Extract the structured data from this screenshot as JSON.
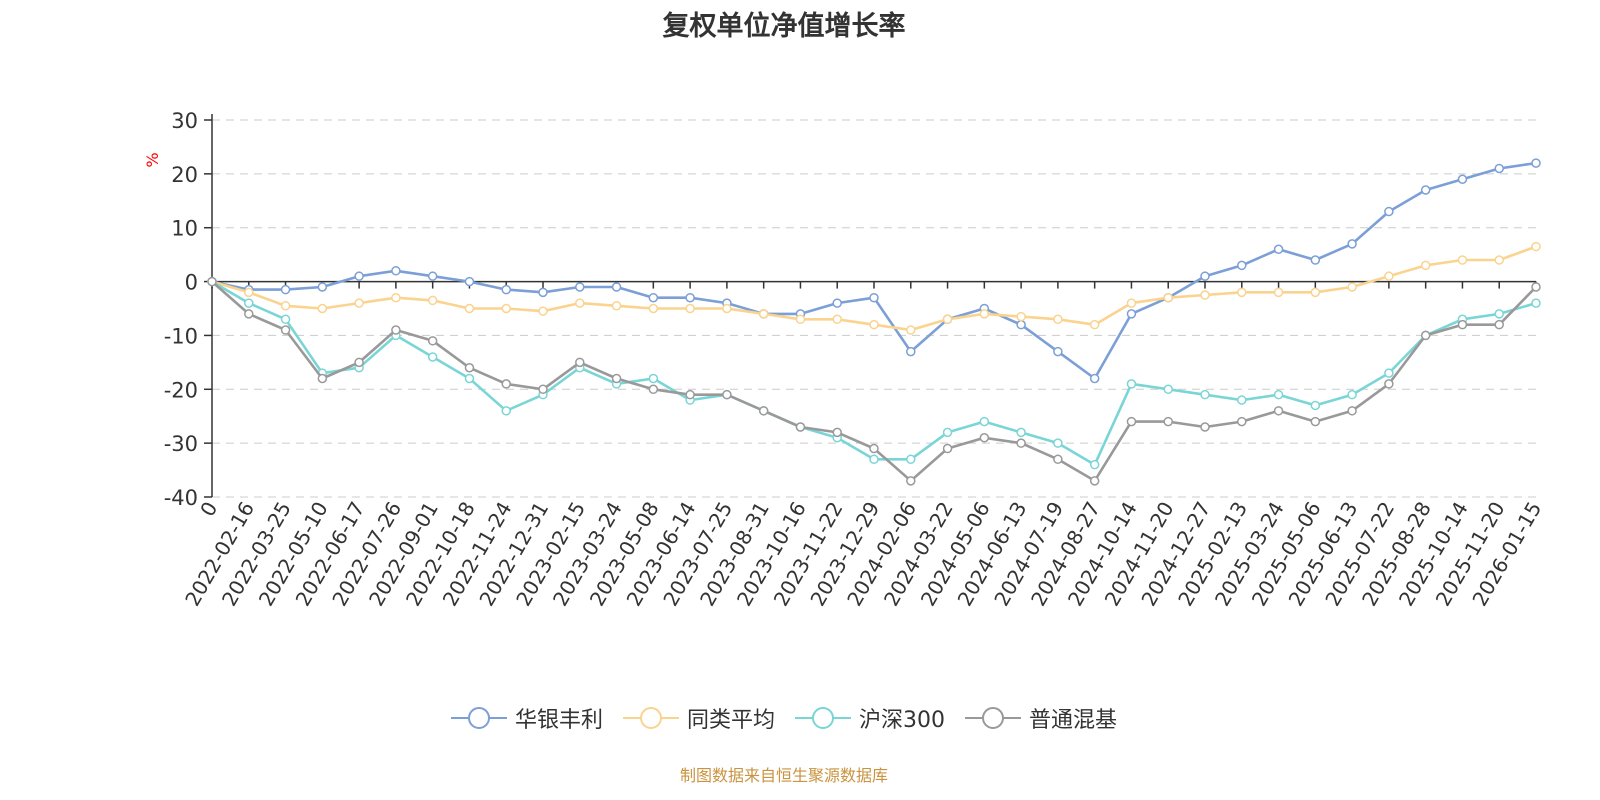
{
  "chart_data": {
    "type": "line",
    "title": "复权单位净值增长率",
    "ylabel": "%",
    "xlabel": "",
    "ylim": [
      -40,
      30
    ],
    "yticks": [
      -40,
      -30,
      -20,
      -10,
      0,
      10,
      20,
      30
    ],
    "grid": true,
    "legend_position": "bottom",
    "categories": [
      "0",
      "2022-02-16",
      "2022-03-25",
      "2022-05-10",
      "2022-06-17",
      "2022-07-26",
      "2022-09-01",
      "2022-10-18",
      "2022-11-24",
      "2022-12-31",
      "2023-02-15",
      "2023-03-24",
      "2023-05-08",
      "2023-06-14",
      "2023-07-25",
      "2023-08-31",
      "2023-10-16",
      "2023-11-22",
      "2023-12-29",
      "2024-02-06",
      "2024-03-22",
      "2024-05-06",
      "2024-06-13",
      "2024-07-19",
      "2024-08-27",
      "2024-10-14",
      "2024-11-20",
      "2024-12-27",
      "2025-02-13",
      "2025-03-24",
      "2025-05-06",
      "2025-06-13",
      "2025-07-22",
      "2025-08-28",
      "2025-10-14",
      "2025-11-20",
      "2026-01-15"
    ],
    "series": [
      {
        "name": "华银丰利",
        "color": "#7b9fd6",
        "values": [
          0,
          -1.5,
          -1.5,
          -1,
          1,
          2,
          1,
          0,
          -1.5,
          -2,
          -1,
          -1,
          -3,
          -3,
          -4,
          -6,
          -6,
          -4,
          -3,
          -13,
          -7,
          -5,
          -8,
          -13,
          -18,
          -6,
          -3,
          1,
          3,
          6,
          4,
          7,
          13,
          17,
          19,
          21,
          22
        ]
      },
      {
        "name": "同类平均",
        "color": "#fad38e",
        "values": [
          0,
          -2,
          -4.5,
          -5,
          -4,
          -3,
          -3.5,
          -5,
          -5,
          -5.5,
          -4,
          -4.5,
          -5,
          -5,
          -5,
          -6,
          -7,
          -7,
          -8,
          -9,
          -7,
          -6,
          -6.5,
          -7,
          -8,
          -4,
          -3,
          -2.5,
          -2,
          -2,
          -2,
          -1,
          1,
          3,
          4,
          4,
          6.5
        ]
      },
      {
        "name": "沪深300",
        "color": "#7ad5d6",
        "values": [
          0,
          -4,
          -7,
          -17,
          -16,
          -10,
          -14,
          -18,
          -24,
          -21,
          -16,
          -19,
          -18,
          -22,
          -21,
          -24,
          -27,
          -29,
          -33,
          -33,
          -28,
          -26,
          -28,
          -30,
          -34,
          -19,
          -20,
          -21,
          -22,
          -21,
          -23,
          -21,
          -17,
          -10,
          -7,
          -6,
          -4
        ]
      },
      {
        "name": "普通混基",
        "color": "#999999",
        "values": [
          0,
          -6,
          -9,
          -18,
          -15,
          -9,
          -11,
          -16,
          -19,
          -20,
          -15,
          -18,
          -20,
          -21,
          -21,
          -24,
          -27,
          -28,
          -31,
          -37,
          -31,
          -29,
          -30,
          -33,
          -37,
          -26,
          -26,
          -27,
          -26,
          -24,
          -26,
          -24,
          -19,
          -10,
          -8,
          -8,
          -1
        ]
      }
    ]
  },
  "source_note": {
    "text": "制图数据来自恒生聚源数据库",
    "color": "#c9933f"
  },
  "colors": {
    "axis": "#333333",
    "grid": "#cccccc",
    "ylabel": "#ff0000",
    "text": "#333333"
  }
}
